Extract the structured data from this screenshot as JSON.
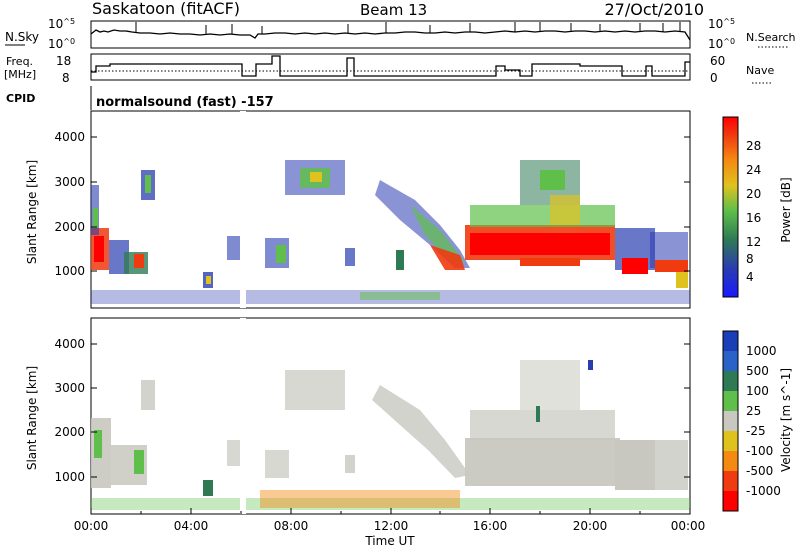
{
  "header": {
    "station": "Saskatoon (fitACF)",
    "beam": "Beam 13",
    "date": "27/Oct/2010"
  },
  "colors": {
    "axis": "#000000",
    "noise_line": "#000000",
    "background": "#ffffff"
  },
  "chart_data": [
    {
      "type": "line",
      "name": "noise",
      "left_labels": [
        "N.Sky"
      ],
      "right_labels": [
        "N.Search"
      ],
      "ytick_labels_left": [
        "10^5",
        "10^0"
      ],
      "ytick_labels_right": [
        "10^5",
        "10^0"
      ],
      "ylim": [
        0,
        5
      ],
      "yscale": "log10"
    },
    {
      "type": "line",
      "name": "frequency_nave",
      "left_labels": [
        "Freq.",
        "[MHz]"
      ],
      "right_labels": [
        "Nave"
      ],
      "ytick_labels_left": [
        "18",
        "8"
      ],
      "ytick_labels_right": [
        "60",
        "0"
      ],
      "freq_ylim": [
        8,
        18
      ],
      "nave_ylim": [
        0,
        60
      ]
    },
    {
      "type": "text",
      "label": "CPID",
      "value": "normalsound (fast) -157"
    },
    {
      "type": "heatmap",
      "parameter": "Power",
      "ylabel": "Slant Range [km]",
      "ylim": [
        180,
        4600
      ],
      "yticks": [
        1000,
        2000,
        3000,
        4000
      ],
      "xlim": [
        0,
        24
      ],
      "colorbar": {
        "label": "Power [dB]",
        "ticks": [
          "28",
          "24",
          "20",
          "16",
          "12",
          "8",
          "4"
        ],
        "range": [
          0,
          30
        ]
      }
    },
    {
      "type": "heatmap",
      "parameter": "Velocity",
      "ylabel": "Slant Range [km]",
      "ylim": [
        180,
        4600
      ],
      "yticks": [
        1000,
        2000,
        3000,
        4000
      ],
      "xlim": [
        0,
        24
      ],
      "xlabel": "Time UT",
      "xtick_labels": [
        "00:00",
        "04:00",
        "08:00",
        "12:00",
        "16:00",
        "20:00",
        "00:00"
      ],
      "colorbar": {
        "label": "Velocity [m s^-1]",
        "ticks": [
          "1000",
          "500",
          "100",
          "25",
          "-25",
          "-100",
          "-500",
          "-1000"
        ]
      }
    }
  ]
}
